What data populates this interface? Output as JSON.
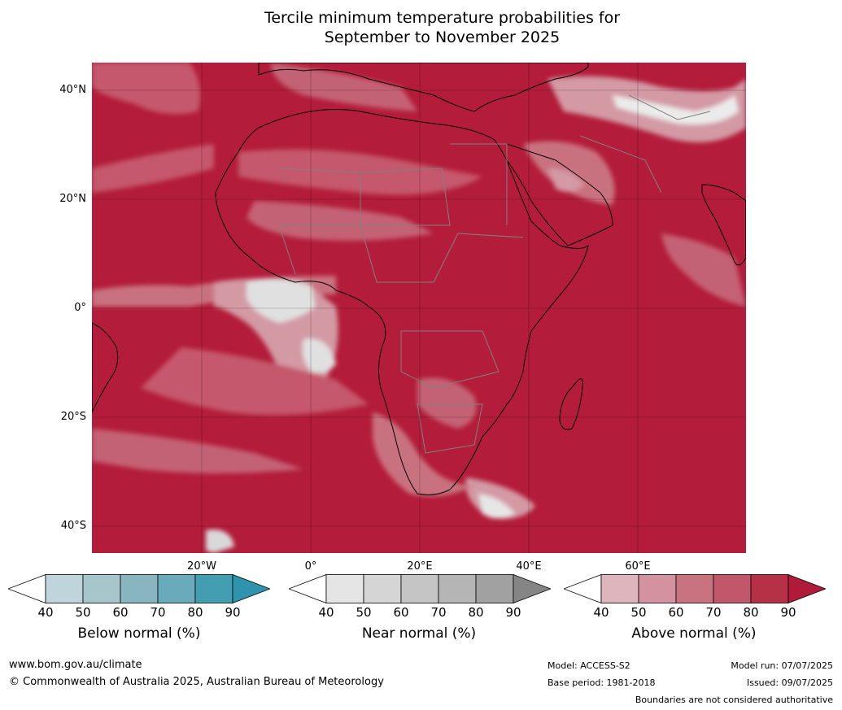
{
  "title_line1": "Tercile minimum temperature probabilities for",
  "title_line2": "September to November 2025",
  "lat_labels": [
    "40°N",
    "20°N",
    "0°",
    "20°S",
    "40°S"
  ],
  "lon_labels": [
    "20°W",
    "0°",
    "20°E",
    "40°E",
    "60°E"
  ],
  "colorbars": [
    {
      "title": "Below normal (%)",
      "ticks": [
        "40",
        "50",
        "60",
        "70",
        "80",
        "90"
      ],
      "colors": [
        "#ffffff",
        "#bfd5db",
        "#a7c6cc",
        "#88b5c0",
        "#69abbb",
        "#439eb1",
        "#2e93ad"
      ]
    },
    {
      "title": "Near normal (%)",
      "ticks": [
        "40",
        "50",
        "60",
        "70",
        "80",
        "90"
      ],
      "colors": [
        "#ffffff",
        "#e5e5e5",
        "#d5d5d5",
        "#c5c5c5",
        "#b5b5b5",
        "#a1a1a1",
        "#858585"
      ]
    },
    {
      "title": "Above normal (%)",
      "ticks": [
        "40",
        "50",
        "60",
        "70",
        "80",
        "90"
      ],
      "colors": [
        "#ffffff",
        "#dfb5bd",
        "#d3939e",
        "#c97280",
        "#c2566a",
        "#b73146",
        "#b01b3a"
      ]
    }
  ],
  "footer": {
    "website": "www.bom.gov.au/climate",
    "copyright": "© Commonwealth of Australia 2025, Australian Bureau of Meteorology",
    "model": "Model: ACCESS-S2",
    "base_period": "Base period: 1981-2018",
    "model_run": "Model run: 07/07/2025",
    "issued": "Issued: 09/07/2025",
    "disclaimer": "Boundaries are not considered authoritative"
  },
  "map_colors": {
    "dominant": "#b31c3a",
    "near_normal_white": "#e6e6e6",
    "coast": "#000000",
    "border": "#808080"
  }
}
